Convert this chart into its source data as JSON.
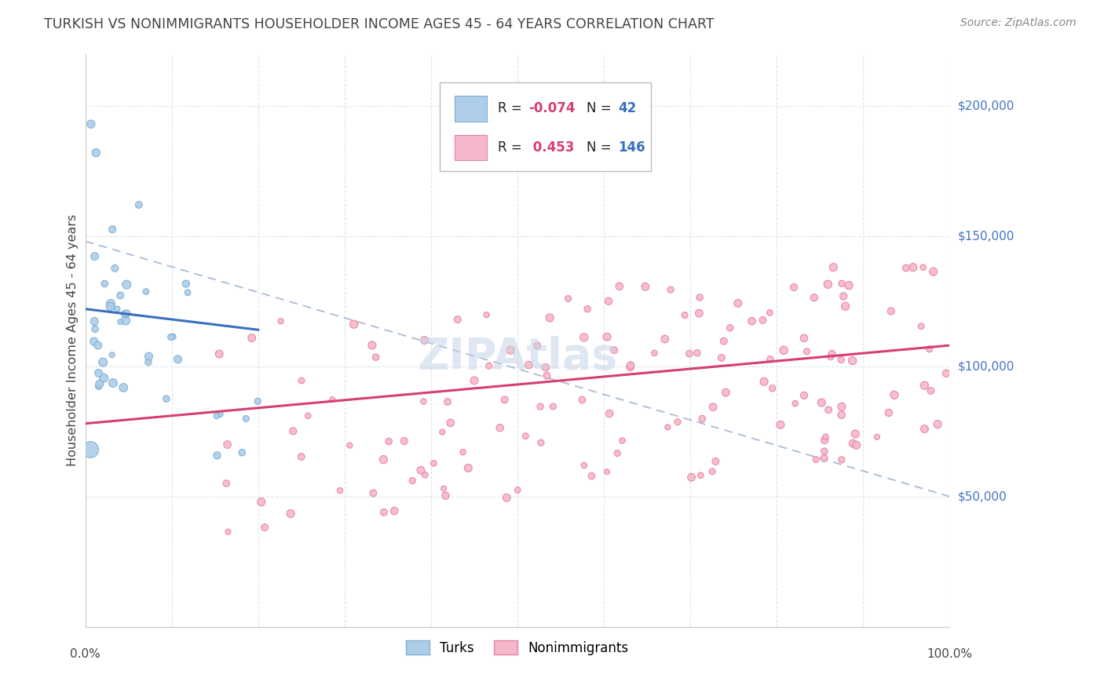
{
  "title": "TURKISH VS NONIMMIGRANTS HOUSEHOLDER INCOME AGES 45 - 64 YEARS CORRELATION CHART",
  "source": "Source: ZipAtlas.com",
  "ylabel": "Householder Income Ages 45 - 64 years",
  "xlim": [
    0,
    1.0
  ],
  "ylim": [
    0,
    220000
  ],
  "yticks": [
    0,
    50000,
    100000,
    150000,
    200000
  ],
  "xticks": [
    0.0,
    0.1,
    0.2,
    0.3,
    0.4,
    0.5,
    0.6,
    0.7,
    0.8,
    0.9,
    1.0
  ],
  "legend_r_turks": "-0.074",
  "legend_n_turks": "42",
  "legend_r_nonimm": "0.453",
  "legend_n_nonimm": "146",
  "turks_color": "#aecde8",
  "turks_edge_color": "#7aafd4",
  "nonimm_color": "#f5b8cb",
  "nonimm_edge_color": "#e8809a",
  "trend_turks_color": "#3a6fbf",
  "trend_nonimm_color": "#d44070",
  "dashed_color": "#9ab0cc",
  "grid_color": "#dce6f0",
  "background_color": "#ffffff",
  "title_color": "#444444",
  "source_color": "#888888",
  "right_label_color": "#4472c4",
  "turks_seed": 12,
  "nonimm_seed": 7
}
